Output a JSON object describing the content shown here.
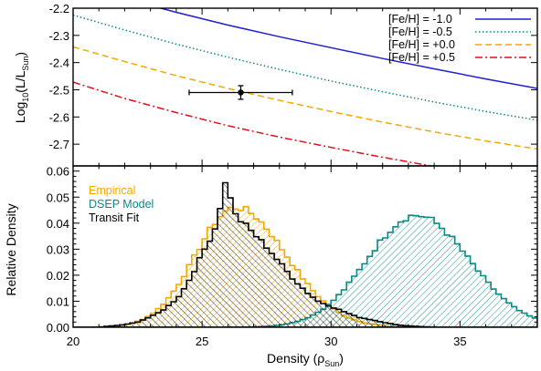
{
  "chart_data": [
    {
      "type": "line",
      "panel": "top",
      "ylabel": {
        "main": "Log",
        "sub1": "10",
        "mid": "(L/L",
        "sub2": "Sun",
        "close": ")"
      },
      "xlim": [
        20,
        38
      ],
      "ylim": [
        -2.78,
        -2.2
      ],
      "yticks": [
        -2.2,
        -2.3,
        -2.4,
        -2.5,
        -2.6,
        -2.7
      ],
      "ytick_labels": [
        "-2.2",
        "-2.3",
        "-2.4",
        "-2.5",
        "-2.6",
        "-2.7"
      ],
      "legend_position": "top-right",
      "series": [
        {
          "name": "[Fe/H] = -1.0",
          "color": "#1f1fd0",
          "dash": "solid",
          "x": [
            20,
            22,
            24,
            26,
            28,
            30,
            32,
            34,
            36,
            38
          ],
          "y": [
            -2.11,
            -2.165,
            -2.215,
            -2.262,
            -2.305,
            -2.345,
            -2.385,
            -2.423,
            -2.46,
            -2.495
          ]
        },
        {
          "name": "[Fe/H] = -0.5",
          "color": "#0a8a86",
          "dash": "dotted",
          "x": [
            20,
            22,
            24,
            26,
            28,
            30,
            32,
            34,
            36,
            38
          ],
          "y": [
            -2.225,
            -2.28,
            -2.332,
            -2.38,
            -2.425,
            -2.468,
            -2.507,
            -2.545,
            -2.58,
            -2.612
          ]
        },
        {
          "name": "[Fe/H] = +0.0",
          "color": "#f5a800",
          "dash": "dashed",
          "x": [
            20,
            22,
            24,
            26,
            28,
            30,
            32,
            34,
            36,
            38
          ],
          "y": [
            -2.342,
            -2.396,
            -2.448,
            -2.495,
            -2.539,
            -2.58,
            -2.619,
            -2.655,
            -2.688,
            -2.718
          ]
        },
        {
          "name": "[Fe/H] = +0.5",
          "color": "#e0101a",
          "dash": "dashdot",
          "x": [
            20,
            22,
            24,
            26,
            28,
            30,
            32,
            34,
            36,
            38
          ],
          "y": [
            -2.472,
            -2.532,
            -2.584,
            -2.632,
            -2.674,
            -2.712,
            -2.748,
            -2.782,
            -2.814,
            -2.843
          ]
        }
      ],
      "point": {
        "x": 26.5,
        "y": -2.51,
        "xerr": 2.0,
        "yerr": 0.025
      }
    },
    {
      "type": "bar",
      "panel": "bottom",
      "style": "step-histogram",
      "xlabel": {
        "main": "Density (ρ",
        "sub": "Sun",
        "close": ")"
      },
      "ylabel": "Relative Density",
      "xlim": [
        20,
        38
      ],
      "ylim": [
        0,
        0.062
      ],
      "xticks": [
        20,
        25,
        30,
        35
      ],
      "xtick_labels": [
        "20",
        "25",
        "30",
        "35"
      ],
      "yticks": [
        0.0,
        0.01,
        0.02,
        0.03,
        0.04,
        0.05,
        0.06
      ],
      "ytick_labels": [
        "0.00",
        "0.01",
        "0.02",
        "0.03",
        "0.04",
        "0.05",
        "0.06"
      ],
      "bin_width": 0.2,
      "legend_position": "top-left",
      "series": [
        {
          "name": "Empirical",
          "color": "#f5a800",
          "hatch": "diagonal-down",
          "shape": {
            "center": 26.3,
            "sigma_left": 1.55,
            "sigma_right": 1.95,
            "peak": 0.046
          }
        },
        {
          "name": "DSEP Model",
          "color": "#0a8a86",
          "hatch": "diagonal-down",
          "shape": {
            "center": 33.3,
            "sigma_left": 1.9,
            "sigma_right": 2.05,
            "peak": 0.043
          }
        },
        {
          "name": "Transit Fit",
          "color": "#000000",
          "hatch": "diagonal-up",
          "values": [
            {
              "x": 22.0,
              "y": 0.001
            },
            {
              "x": 22.5,
              "y": 0.002
            },
            {
              "x": 23.0,
              "y": 0.004
            },
            {
              "x": 23.4,
              "y": 0.006
            },
            {
              "x": 23.8,
              "y": 0.009
            },
            {
              "x": 24.2,
              "y": 0.013
            },
            {
              "x": 24.6,
              "y": 0.02
            },
            {
              "x": 24.9,
              "y": 0.026
            },
            {
              "x": 25.2,
              "y": 0.032
            },
            {
              "x": 25.4,
              "y": 0.036
            },
            {
              "x": 25.6,
              "y": 0.04
            },
            {
              "x": 25.8,
              "y": 0.053
            },
            {
              "x": 26.0,
              "y": 0.057
            },
            {
              "x": 26.2,
              "y": 0.044
            },
            {
              "x": 26.5,
              "y": 0.041
            },
            {
              "x": 27.0,
              "y": 0.036
            },
            {
              "x": 27.5,
              "y": 0.031
            },
            {
              "x": 28.0,
              "y": 0.025
            },
            {
              "x": 28.5,
              "y": 0.019
            },
            {
              "x": 29.0,
              "y": 0.014
            },
            {
              "x": 29.5,
              "y": 0.01
            },
            {
              "x": 30.0,
              "y": 0.008
            },
            {
              "x": 30.5,
              "y": 0.006
            },
            {
              "x": 31.0,
              "y": 0.004
            },
            {
              "x": 31.5,
              "y": 0.003
            },
            {
              "x": 32.0,
              "y": 0.002
            },
            {
              "x": 32.5,
              "y": 0.001
            },
            {
              "x": 33.0,
              "y": 0.0005
            },
            {
              "x": 34.0,
              "y": 0.0
            }
          ]
        }
      ]
    }
  ]
}
